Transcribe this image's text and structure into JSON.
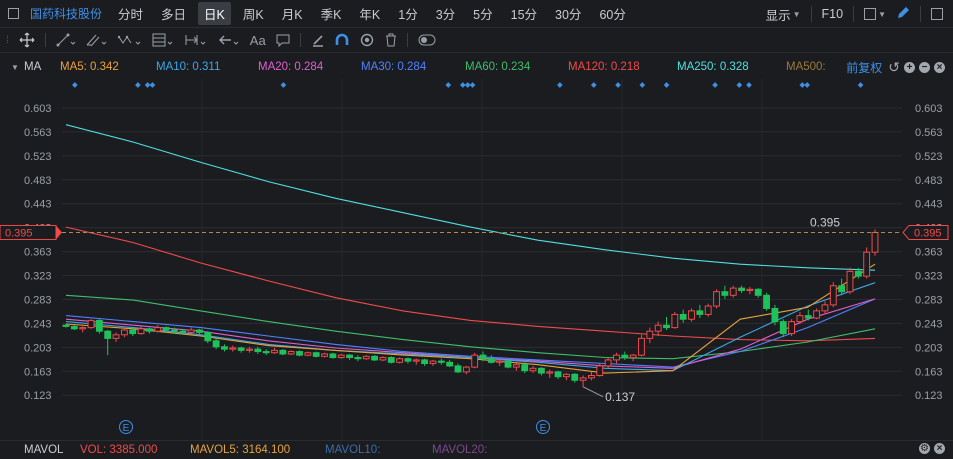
{
  "topbar": {
    "stock_name": "国药科技股份",
    "periods": [
      {
        "label": "分时"
      },
      {
        "label": "多日"
      },
      {
        "label": "日K",
        "active": true
      },
      {
        "label": "周K"
      },
      {
        "label": "月K"
      },
      {
        "label": "季K"
      },
      {
        "label": "年K"
      },
      {
        "label": "1分"
      },
      {
        "label": "3分"
      },
      {
        "label": "5分"
      },
      {
        "label": "15分"
      },
      {
        "label": "30分"
      },
      {
        "label": "60分"
      }
    ],
    "display_label": "显示",
    "f10_label": "F10"
  },
  "toolbar": {
    "text_tool": "Aa"
  },
  "ma_legend": {
    "label": "MA",
    "items": [
      {
        "text": "MA5: 0.342",
        "color": "#e8a23c"
      },
      {
        "text": "MA10: 0.311",
        "color": "#3ca7e8"
      },
      {
        "text": "MA20: 0.284",
        "color": "#e05fd0"
      },
      {
        "text": "MA30: 0.284",
        "color": "#4f82ff"
      },
      {
        "text": "MA60: 0.234",
        "color": "#3fbf6a"
      },
      {
        "text": "MA120: 0.218",
        "color": "#f04a4a"
      },
      {
        "text": "MA250: 0.328",
        "color": "#4fe0e0"
      },
      {
        "text": "MA500: ",
        "color": "#9a7a3a"
      }
    ],
    "adjust_label": "前复权"
  },
  "chart_data": {
    "type": "candlestick",
    "y_ticks": [
      "0.603",
      "0.563",
      "0.523",
      "0.483",
      "0.443",
      "0.403",
      "0.363",
      "0.323",
      "0.283",
      "0.243",
      "0.203",
      "0.163",
      "0.123"
    ],
    "ylim": [
      0.1,
      0.618
    ],
    "current_price": "0.395",
    "current_price_label": "0.395",
    "low_label": "0.137",
    "low_value": 0.137,
    "event_marker": "E",
    "candles": [
      [
        0.24,
        0.242,
        0.236,
        0.238
      ],
      [
        0.238,
        0.24,
        0.232,
        0.234
      ],
      [
        0.234,
        0.238,
        0.228,
        0.236
      ],
      [
        0.236,
        0.25,
        0.234,
        0.248
      ],
      [
        0.248,
        0.25,
        0.226,
        0.23
      ],
      [
        0.23,
        0.232,
        0.19,
        0.218
      ],
      [
        0.218,
        0.228,
        0.212,
        0.224
      ],
      [
        0.224,
        0.236,
        0.22,
        0.232
      ],
      [
        0.232,
        0.236,
        0.222,
        0.226
      ],
      [
        0.226,
        0.24,
        0.224,
        0.234
      ],
      [
        0.234,
        0.236,
        0.226,
        0.23
      ],
      [
        0.23,
        0.24,
        0.228,
        0.236
      ],
      [
        0.236,
        0.238,
        0.228,
        0.232
      ],
      [
        0.232,
        0.236,
        0.226,
        0.23
      ],
      [
        0.23,
        0.234,
        0.224,
        0.228
      ],
      [
        0.228,
        0.236,
        0.226,
        0.232
      ],
      [
        0.232,
        0.234,
        0.224,
        0.228
      ],
      [
        0.228,
        0.23,
        0.21,
        0.214
      ],
      [
        0.214,
        0.218,
        0.2,
        0.204
      ],
      [
        0.204,
        0.208,
        0.196,
        0.2
      ],
      [
        0.2,
        0.206,
        0.196,
        0.202
      ],
      [
        0.202,
        0.204,
        0.194,
        0.198
      ],
      [
        0.198,
        0.204,
        0.194,
        0.2
      ],
      [
        0.2,
        0.204,
        0.192,
        0.196
      ],
      [
        0.196,
        0.2,
        0.19,
        0.194
      ],
      [
        0.194,
        0.202,
        0.192,
        0.198
      ],
      [
        0.198,
        0.2,
        0.19,
        0.192
      ],
      [
        0.192,
        0.198,
        0.19,
        0.196
      ],
      [
        0.196,
        0.198,
        0.188,
        0.19
      ],
      [
        0.19,
        0.196,
        0.188,
        0.194
      ],
      [
        0.194,
        0.196,
        0.186,
        0.188
      ],
      [
        0.188,
        0.194,
        0.186,
        0.192
      ],
      [
        0.192,
        0.194,
        0.184,
        0.186
      ],
      [
        0.186,
        0.192,
        0.184,
        0.19
      ],
      [
        0.19,
        0.192,
        0.182,
        0.186
      ],
      [
        0.186,
        0.19,
        0.18,
        0.184
      ],
      [
        0.184,
        0.19,
        0.182,
        0.188
      ],
      [
        0.188,
        0.19,
        0.18,
        0.182
      ],
      [
        0.182,
        0.188,
        0.18,
        0.186
      ],
      [
        0.186,
        0.188,
        0.176,
        0.178
      ],
      [
        0.178,
        0.186,
        0.176,
        0.184
      ],
      [
        0.184,
        0.186,
        0.176,
        0.18
      ],
      [
        0.18,
        0.184,
        0.174,
        0.182
      ],
      [
        0.182,
        0.184,
        0.172,
        0.176
      ],
      [
        0.176,
        0.182,
        0.172,
        0.18
      ],
      [
        0.18,
        0.184,
        0.174,
        0.178
      ],
      [
        0.178,
        0.182,
        0.17,
        0.172
      ],
      [
        0.172,
        0.176,
        0.16,
        0.162
      ],
      [
        0.162,
        0.172,
        0.158,
        0.17
      ],
      [
        0.17,
        0.194,
        0.168,
        0.19
      ],
      [
        0.19,
        0.196,
        0.18,
        0.184
      ],
      [
        0.184,
        0.19,
        0.176,
        0.178
      ],
      [
        0.178,
        0.184,
        0.172,
        0.18
      ],
      [
        0.18,
        0.182,
        0.168,
        0.17
      ],
      [
        0.17,
        0.176,
        0.164,
        0.174
      ],
      [
        0.174,
        0.178,
        0.16,
        0.164
      ],
      [
        0.164,
        0.172,
        0.16,
        0.168
      ],
      [
        0.168,
        0.17,
        0.156,
        0.16
      ],
      [
        0.16,
        0.166,
        0.152,
        0.162
      ],
      [
        0.162,
        0.164,
        0.15,
        0.154
      ],
      [
        0.154,
        0.16,
        0.148,
        0.158
      ],
      [
        0.158,
        0.16,
        0.144,
        0.148
      ],
      [
        0.148,
        0.156,
        0.137,
        0.152
      ],
      [
        0.152,
        0.162,
        0.148,
        0.156
      ],
      [
        0.156,
        0.176,
        0.154,
        0.172
      ],
      [
        0.172,
        0.186,
        0.168,
        0.182
      ],
      [
        0.182,
        0.194,
        0.176,
        0.19
      ],
      [
        0.19,
        0.196,
        0.182,
        0.186
      ],
      [
        0.186,
        0.192,
        0.18,
        0.19
      ],
      [
        0.19,
        0.224,
        0.188,
        0.218
      ],
      [
        0.218,
        0.236,
        0.21,
        0.23
      ],
      [
        0.23,
        0.246,
        0.222,
        0.24
      ],
      [
        0.24,
        0.254,
        0.232,
        0.236
      ],
      [
        0.236,
        0.262,
        0.234,
        0.258
      ],
      [
        0.258,
        0.266,
        0.244,
        0.25
      ],
      [
        0.25,
        0.268,
        0.246,
        0.264
      ],
      [
        0.264,
        0.274,
        0.252,
        0.258
      ],
      [
        0.258,
        0.276,
        0.254,
        0.272
      ],
      [
        0.272,
        0.3,
        0.268,
        0.296
      ],
      [
        0.296,
        0.306,
        0.284,
        0.29
      ],
      [
        0.29,
        0.306,
        0.286,
        0.302
      ],
      [
        0.302,
        0.306,
        0.294,
        0.298
      ],
      [
        0.298,
        0.304,
        0.292,
        0.3
      ],
      [
        0.3,
        0.302,
        0.286,
        0.29
      ],
      [
        0.29,
        0.294,
        0.264,
        0.268
      ],
      [
        0.268,
        0.274,
        0.24,
        0.246
      ],
      [
        0.246,
        0.25,
        0.22,
        0.226
      ],
      [
        0.226,
        0.25,
        0.222,
        0.246
      ],
      [
        0.246,
        0.262,
        0.242,
        0.256
      ],
      [
        0.256,
        0.266,
        0.248,
        0.252
      ],
      [
        0.252,
        0.268,
        0.25,
        0.264
      ],
      [
        0.264,
        0.28,
        0.258,
        0.274
      ],
      [
        0.274,
        0.312,
        0.27,
        0.306
      ],
      [
        0.306,
        0.318,
        0.29,
        0.296
      ],
      [
        0.296,
        0.336,
        0.292,
        0.33
      ],
      [
        0.33,
        0.336,
        0.318,
        0.322
      ],
      [
        0.322,
        0.37,
        0.318,
        0.362
      ],
      [
        0.362,
        0.4,
        0.356,
        0.395
      ]
    ],
    "ma_series": [
      {
        "color": "#4fe0e0",
        "values": [
          0.575,
          0.546,
          0.512,
          0.48,
          0.452,
          0.428,
          0.404,
          0.382,
          0.366,
          0.352,
          0.342,
          0.336,
          0.332
        ]
      },
      {
        "color": "#f04a4a",
        "values": [
          0.404,
          0.378,
          0.344,
          0.314,
          0.286,
          0.264,
          0.248,
          0.238,
          0.23,
          0.222,
          0.216,
          0.214,
          0.218
        ]
      },
      {
        "color": "#3fbf6a",
        "values": [
          0.29,
          0.282,
          0.264,
          0.246,
          0.23,
          0.216,
          0.204,
          0.194,
          0.186,
          0.184,
          0.196,
          0.212,
          0.234
        ]
      },
      {
        "color": "#4f82ff",
        "values": [
          0.256,
          0.246,
          0.236,
          0.222,
          0.208,
          0.196,
          0.188,
          0.182,
          0.176,
          0.17,
          0.196,
          0.236,
          0.284
        ]
      },
      {
        "color": "#e05fd0",
        "values": [
          0.25,
          0.24,
          0.23,
          0.214,
          0.202,
          0.194,
          0.186,
          0.18,
          0.172,
          0.168,
          0.2,
          0.25,
          0.284
        ]
      },
      {
        "color": "#3ca7e8",
        "values": [
          0.246,
          0.236,
          0.224,
          0.208,
          0.198,
          0.192,
          0.186,
          0.178,
          0.168,
          0.164,
          0.22,
          0.272,
          0.311
        ]
      },
      {
        "color": "#e8a23c",
        "values": [
          0.242,
          0.234,
          0.222,
          0.206,
          0.198,
          0.19,
          0.184,
          0.174,
          0.16,
          0.164,
          0.25,
          0.27,
          0.342
        ]
      }
    ]
  },
  "volume_legend": {
    "label": "MAVOL",
    "vol": "VOL: 3385.000",
    "mavol5": "MAVOL5: 3164.100",
    "mavol10": "MAVOL10:",
    "mavol20": "MAVOL20:"
  }
}
